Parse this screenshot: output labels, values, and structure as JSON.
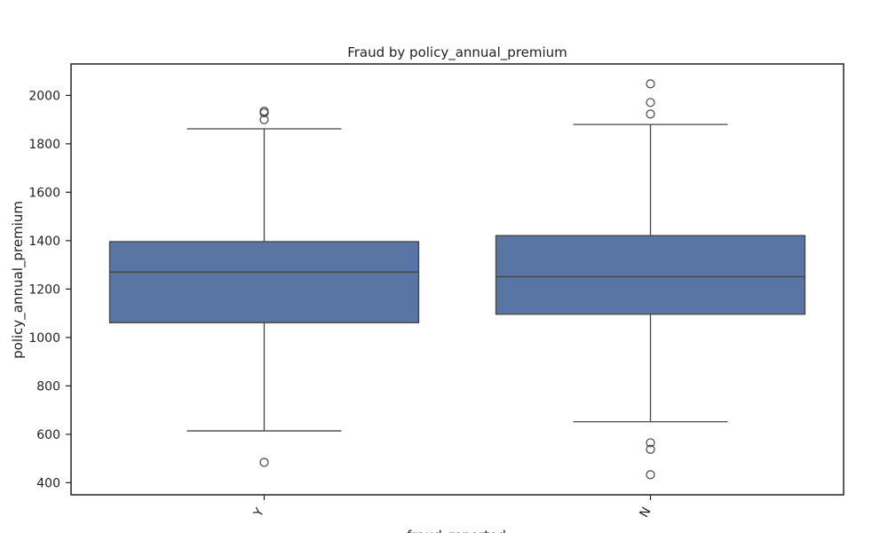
{
  "chart_data": {
    "type": "box",
    "title": "Fraud by policy_annual_premium",
    "xlabel": "fraud_reported",
    "ylabel": "policy_annual_premium",
    "ylim": [
      350,
      2130
    ],
    "yticks": [
      400,
      600,
      800,
      1000,
      1200,
      1400,
      1600,
      1800,
      2000
    ],
    "grid": false,
    "categories": [
      "Y",
      "N"
    ],
    "boxes": [
      {
        "category": "Y",
        "whisker_low": 614,
        "q1": 1061,
        "median": 1270,
        "q3": 1396,
        "whisker_high": 1862,
        "outliers": [
          484,
          1900,
          1928,
          1935
        ]
      },
      {
        "category": "N",
        "whisker_low": 652,
        "q1": 1096,
        "median": 1251,
        "q3": 1421,
        "whisker_high": 1880,
        "outliers": [
          433,
          538,
          565,
          1923,
          1971,
          2048
        ]
      }
    ],
    "colors": {
      "box_fill": "#5875a4",
      "line": "#444444",
      "axis": "#222222"
    }
  }
}
